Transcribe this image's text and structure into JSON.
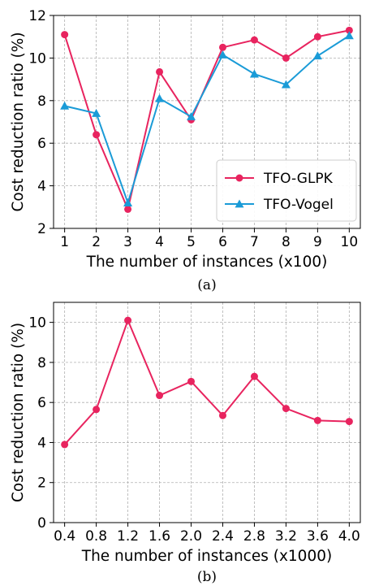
{
  "chart_data": [
    {
      "type": "line",
      "caption": "(a)",
      "xlabel": "The number of instances (x100)",
      "ylabel": "Cost reduction ratio (%)",
      "categories": [
        "1",
        "2",
        "3",
        "4",
        "5",
        "6",
        "7",
        "8",
        "9",
        "10"
      ],
      "x": [
        1,
        2,
        3,
        4,
        5,
        6,
        7,
        8,
        9,
        10
      ],
      "xlim": [
        0.65,
        10.35
      ],
      "ylim": [
        2,
        12
      ],
      "yticks": [
        2,
        4,
        6,
        8,
        10,
        12
      ],
      "grid": true,
      "legend": "lower-right",
      "series": [
        {
          "name": "TFO-GLPK",
          "color": "#e8245f",
          "marker": "circle",
          "values": [
            11.1,
            6.4,
            2.9,
            9.35,
            7.1,
            10.5,
            10.85,
            10.0,
            11.0,
            11.3
          ]
        },
        {
          "name": "TFO-Vogel",
          "color": "#1a9bd7",
          "marker": "triangle",
          "values": [
            7.75,
            7.4,
            3.2,
            8.1,
            7.25,
            10.15,
            9.25,
            8.75,
            10.1,
            11.05
          ]
        }
      ]
    },
    {
      "type": "line",
      "caption": "(b)",
      "xlabel": "The number of instances (x1000)",
      "ylabel": "Cost reduction ratio (%)",
      "categories": [
        "0.4",
        "0.8",
        "1.2",
        "1.6",
        "2.0",
        "2.4",
        "2.8",
        "3.2",
        "3.6",
        "4.0"
      ],
      "x": [
        0.4,
        0.8,
        1.2,
        1.6,
        2.0,
        2.4,
        2.8,
        3.2,
        3.6,
        4.0
      ],
      "xlim": [
        0.26,
        4.14
      ],
      "ylim": [
        0,
        11
      ],
      "yticks": [
        0,
        2,
        4,
        6,
        8,
        10
      ],
      "grid": true,
      "legend": "none",
      "series": [
        {
          "color": "#e8245f",
          "marker": "circle",
          "values": [
            3.9,
            5.65,
            10.1,
            6.35,
            7.05,
            5.35,
            7.3,
            5.7,
            5.1,
            5.05
          ]
        }
      ]
    }
  ]
}
